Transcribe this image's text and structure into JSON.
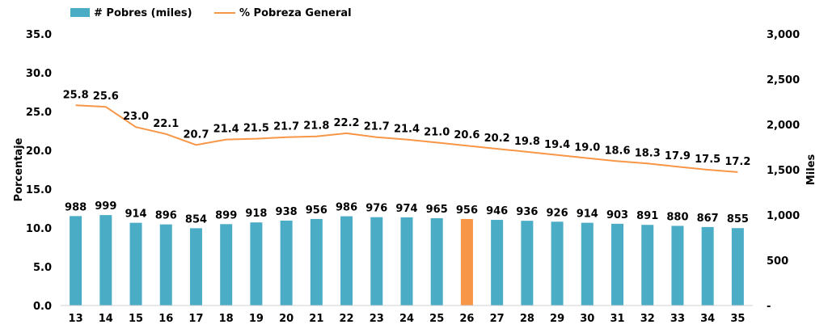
{
  "chart_data": {
    "type": "bar",
    "categories": [
      "13",
      "14",
      "15",
      "16",
      "17",
      "18",
      "19",
      "20",
      "21",
      "22",
      "23",
      "24",
      "25",
      "26",
      "27",
      "28",
      "29",
      "30",
      "31",
      "32",
      "33",
      "34",
      "35"
    ],
    "series": [
      {
        "name": "# Pobres (miles)",
        "type": "bar",
        "axis": "right",
        "color": "#4BACC6",
        "highlight_index": 13,
        "highlight_color": "#F79646",
        "values": [
          988,
          999,
          914,
          896,
          854,
          899,
          918,
          938,
          956,
          986,
          976,
          974,
          965,
          956,
          946,
          936,
          926,
          914,
          903,
          891,
          880,
          867,
          855
        ],
        "labels": [
          "988",
          "999",
          "914",
          "896",
          "854",
          "899",
          "918",
          "938",
          "956",
          "986",
          "976",
          "974",
          "965",
          "956",
          "946",
          "936",
          "926",
          "914",
          "903",
          "891",
          "880",
          "867",
          "855"
        ]
      },
      {
        "name": "% Pobreza General",
        "type": "line",
        "axis": "left",
        "color": "#F79646",
        "values": [
          25.8,
          25.6,
          23.0,
          22.1,
          20.7,
          21.4,
          21.5,
          21.7,
          21.8,
          22.2,
          21.7,
          21.4,
          21.0,
          20.6,
          20.2,
          19.8,
          19.4,
          19.0,
          18.6,
          18.3,
          17.9,
          17.5,
          17.2
        ],
        "labels": [
          "25.8",
          "25.6",
          "23.0",
          "22.1",
          "20.7",
          "21.4",
          "21.5",
          "21.7",
          "21.8",
          "22.2",
          "21.7",
          "21.4",
          "21.0",
          "20.6",
          "20.2",
          "19.8",
          "19.4",
          "19.0",
          "18.6",
          "18.3",
          "17.9",
          "17.5",
          "17.2"
        ]
      }
    ],
    "ylabel": "Porcentaje",
    "y2label": "Miles",
    "ylim": [
      0,
      35
    ],
    "y2lim": [
      0,
      3000
    ],
    "yticks": [
      "0.0",
      "5.0",
      "10.0",
      "15.0",
      "20.0",
      "25.0",
      "30.0",
      "35.0"
    ],
    "y2ticks": [
      "-",
      "500",
      "1,000",
      "1,500",
      "2,000",
      "2,500",
      "3,000"
    ],
    "grid": false,
    "legend": "top-left"
  }
}
